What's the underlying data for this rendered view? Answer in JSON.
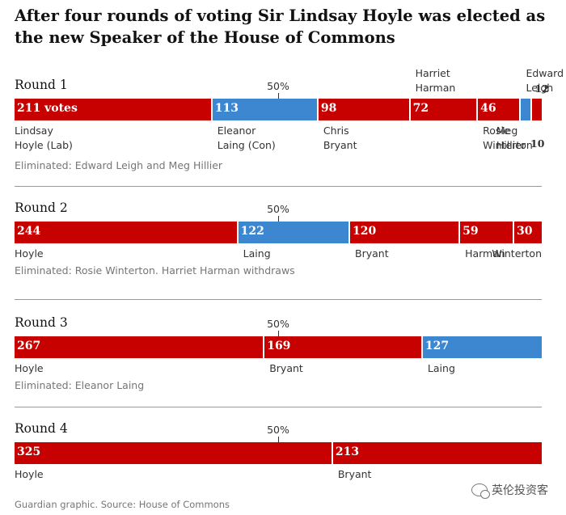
{
  "title": "After four rounds of voting Sir Lindsay Hoyle was elected as the new Speaker of the House of Commons",
  "source": "Guardian graphic. Source: House of Commons",
  "watermark": "英伦投资客",
  "colors": {
    "labour": "#c70000",
    "conservative": "#3d87d1"
  },
  "chart_data": {
    "type": "bar",
    "orientation": "horizontal-stacked",
    "threshold_label": "50%",
    "threshold": 0.5,
    "rounds": [
      {
        "label": "Round 1",
        "eliminated": "Eliminated: Edward Leigh and Meg Hillier",
        "bars": [
          {
            "value": 211,
            "value_label": "211 votes",
            "party": "labour",
            "name": [
              "Lindsay",
              "Hoyle (Lab)"
            ]
          },
          {
            "value": 113,
            "value_label": "113",
            "party": "conservative",
            "name": [
              "Eleanor",
              "Laing (Con)"
            ]
          },
          {
            "value": 98,
            "value_label": "98",
            "party": "labour",
            "name": [
              "Chris",
              "Bryant"
            ]
          },
          {
            "value": 72,
            "value_label": "72",
            "party": "labour",
            "name": [
              "Harriet",
              "Harman"
            ],
            "name_position": "above"
          },
          {
            "value": 46,
            "value_label": "46",
            "party": "labour",
            "name": [
              "Rosie",
              "Winterton"
            ]
          },
          {
            "value": 12,
            "value_label": "12",
            "party": "conservative",
            "name": [
              "Edward",
              "Leigh"
            ],
            "name_position": "above"
          },
          {
            "value": 10,
            "value_label": "10",
            "party": "labour",
            "name": [
              "Meg",
              "Hillier"
            ]
          }
        ]
      },
      {
        "label": "Round 2",
        "eliminated": "Eliminated: Rosie Winterton. Harriet Harman withdraws",
        "bars": [
          {
            "value": 244,
            "value_label": "244",
            "party": "labour",
            "name": [
              "Hoyle"
            ]
          },
          {
            "value": 122,
            "value_label": "122",
            "party": "conservative",
            "name": [
              "Laing"
            ]
          },
          {
            "value": 120,
            "value_label": "120",
            "party": "labour",
            "name": [
              "Bryant"
            ]
          },
          {
            "value": 59,
            "value_label": "59",
            "party": "labour",
            "name": [
              "Harman"
            ]
          },
          {
            "value": 30,
            "value_label": "30",
            "party": "labour",
            "name": [
              "Winterton"
            ]
          }
        ]
      },
      {
        "label": "Round 3",
        "eliminated": "Eliminated: Eleanor Laing",
        "bars": [
          {
            "value": 267,
            "value_label": "267",
            "party": "labour",
            "name": [
              "Hoyle"
            ]
          },
          {
            "value": 169,
            "value_label": "169",
            "party": "labour",
            "name": [
              "Bryant"
            ]
          },
          {
            "value": 127,
            "value_label": "127",
            "party": "conservative",
            "name": [
              "Laing"
            ]
          }
        ]
      },
      {
        "label": "Round 4",
        "eliminated": "",
        "bars": [
          {
            "value": 325,
            "value_label": "325",
            "party": "labour",
            "name": [
              "Hoyle"
            ]
          },
          {
            "value": 213,
            "value_label": "213",
            "party": "labour",
            "name": [
              "Bryant"
            ]
          }
        ]
      }
    ]
  }
}
